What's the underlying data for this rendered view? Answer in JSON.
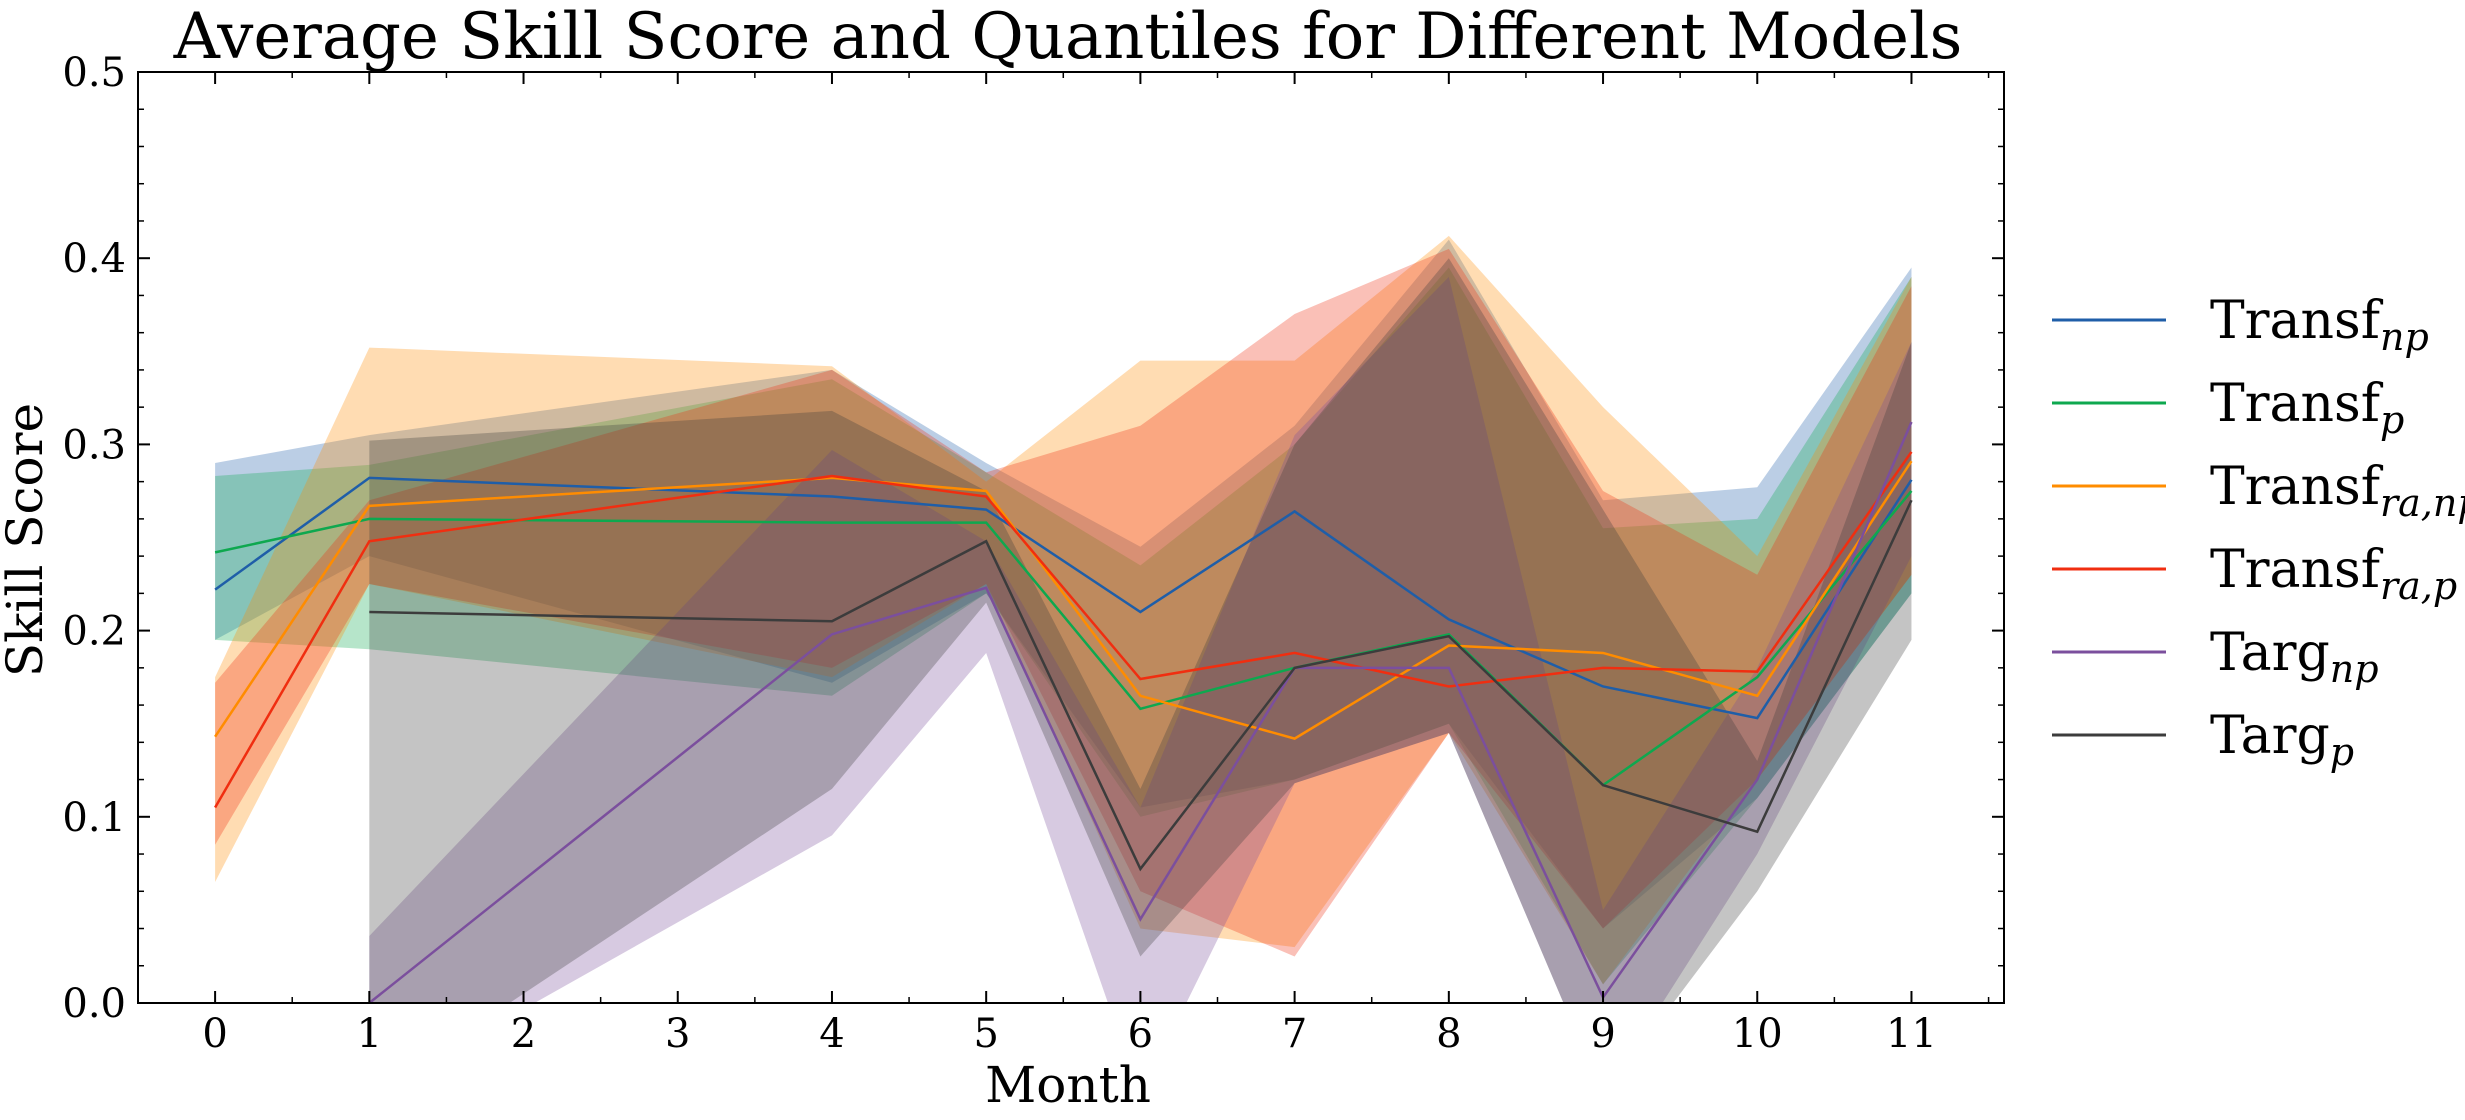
{
  "chart_data": {
    "type": "line",
    "title": "Average Skill Score and Quantiles for Different Models",
    "xlabel": "Month",
    "ylabel": "Skill Score",
    "xlim": [
      -0.5,
      11.6
    ],
    "ylim": [
      0,
      0.5
    ],
    "x_ticks": [
      0,
      1,
      2,
      3,
      4,
      5,
      6,
      7,
      8,
      9,
      10,
      11
    ],
    "y_ticks": [
      0.0,
      0.1,
      0.2,
      0.3,
      0.4,
      0.5
    ],
    "y_tick_labels": [
      "0.0",
      "0.1",
      "0.2",
      "0.3",
      "0.4",
      "0.5"
    ],
    "grid": false,
    "legend_position": "right, outside plot",
    "series": [
      {
        "name": "Transf",
        "subscript": "np",
        "color": "#1f5ea8",
        "x": [
          0,
          1,
          4,
          5,
          6,
          7,
          8,
          9,
          10,
          11
        ],
        "values": [
          0.222,
          0.282,
          0.272,
          0.265,
          0.21,
          0.264,
          0.206,
          0.17,
          0.153,
          0.281
        ],
        "lower": [
          0.195,
          0.24,
          0.172,
          0.22,
          0.105,
          0.12,
          0.15,
          0.04,
          0.11,
          0.22
        ],
        "upper": [
          0.29,
          0.305,
          0.34,
          0.29,
          0.245,
          0.31,
          0.41,
          0.27,
          0.277,
          0.395
        ]
      },
      {
        "name": "Transf",
        "subscript": "p",
        "color": "#0ea84f",
        "x": [
          0,
          1,
          4,
          5,
          6,
          7,
          8,
          9,
          10,
          11
        ],
        "values": [
          0.242,
          0.26,
          0.258,
          0.258,
          0.158,
          0.18,
          0.198,
          0.117,
          0.175,
          0.275
        ],
        "lower": [
          0.195,
          0.19,
          0.165,
          0.22,
          0.1,
          0.12,
          0.15,
          0.01,
          0.11,
          0.22
        ],
        "upper": [
          0.283,
          0.289,
          0.335,
          0.285,
          0.235,
          0.3,
          0.395,
          0.255,
          0.26,
          0.39
        ]
      },
      {
        "name": "Transf",
        "subscript": "ra,np",
        "color": "#ff8c00",
        "x": [
          0,
          1,
          4,
          5,
          6,
          7,
          8,
          9,
          10,
          11
        ],
        "values": [
          0.143,
          0.267,
          0.282,
          0.275,
          0.165,
          0.142,
          0.192,
          0.188,
          0.165,
          0.291
        ],
        "lower": [
          0.065,
          0.225,
          0.175,
          0.225,
          0.04,
          0.03,
          0.145,
          0.01,
          0.12,
          0.23
        ],
        "upper": [
          0.175,
          0.352,
          0.342,
          0.28,
          0.345,
          0.345,
          0.412,
          0.32,
          0.24,
          0.39
        ]
      },
      {
        "name": "Transf",
        "subscript": "ra,p",
        "color": "#f02e10",
        "x": [
          0,
          1,
          4,
          5,
          6,
          7,
          8,
          9,
          10,
          11
        ],
        "values": [
          0.105,
          0.248,
          0.283,
          0.272,
          0.174,
          0.188,
          0.17,
          0.18,
          0.178,
          0.296
        ],
        "lower": [
          0.085,
          0.225,
          0.18,
          0.225,
          0.06,
          0.025,
          0.145,
          0.04,
          0.12,
          0.23
        ],
        "upper": [
          0.172,
          0.27,
          0.34,
          0.285,
          0.31,
          0.37,
          0.405,
          0.275,
          0.23,
          0.385
        ]
      },
      {
        "name": "Targ",
        "subscript": "np",
        "color": "#7b4f9d",
        "x": [
          1,
          4,
          5,
          6,
          7,
          8,
          9,
          10,
          11
        ],
        "values": [
          0.0,
          0.198,
          0.223,
          0.045,
          0.18,
          0.18,
          0.003,
          0.12,
          0.312
        ],
        "lower": [
          -0.05,
          0.09,
          0.188,
          -0.05,
          0.118,
          0.145,
          -0.05,
          0.08,
          0.24
        ],
        "upper": [
          0.036,
          0.297,
          0.248,
          0.105,
          0.305,
          0.39,
          0.05,
          0.18,
          0.355
        ]
      },
      {
        "name": "Targ",
        "subscript": "p",
        "color": "#3c3c3c",
        "x": [
          1,
          4,
          5,
          6,
          7,
          8,
          9,
          10,
          11
        ],
        "values": [
          0.21,
          0.205,
          0.248,
          0.072,
          0.18,
          0.197,
          0.117,
          0.092,
          0.27
        ],
        "lower": [
          -0.05,
          0.115,
          0.215,
          0.025,
          0.118,
          0.145,
          -0.05,
          0.06,
          0.195
        ],
        "upper": [
          0.302,
          0.318,
          0.275,
          0.115,
          0.3,
          0.4,
          0.265,
          0.13,
          0.355
        ]
      }
    ]
  }
}
